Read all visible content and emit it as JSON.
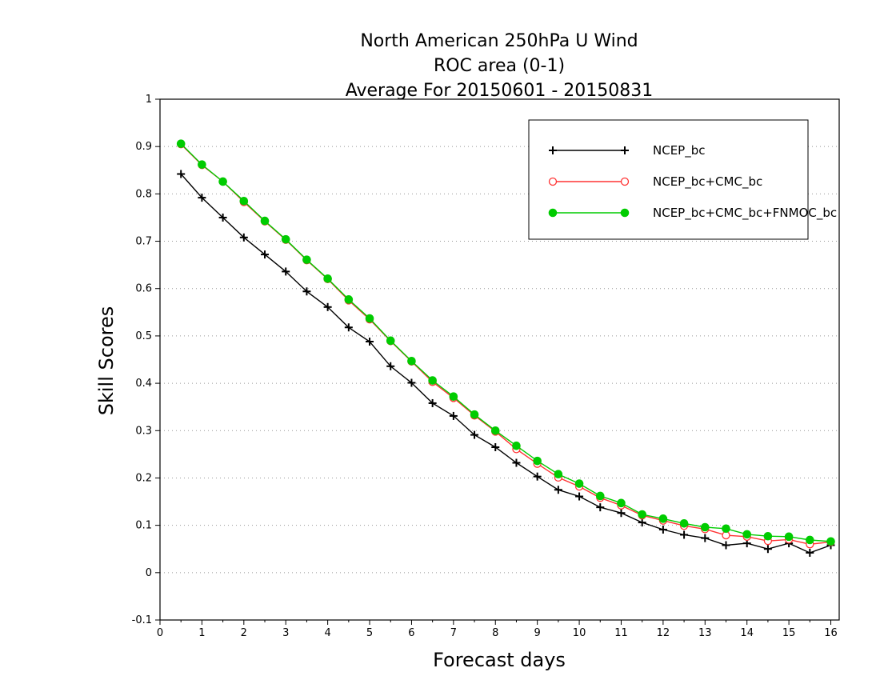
{
  "chart_data": {
    "type": "line",
    "title_lines": [
      "North American 250hPa U Wind",
      "ROC area (0-1)",
      "Average For 20150601 - 20150831"
    ],
    "xlabel": "Forecast days",
    "ylabel": "Skill Scores",
    "xlim": [
      0,
      16.2
    ],
    "ylim": [
      -0.1,
      1
    ],
    "x_ticks": [
      0,
      1,
      2,
      3,
      4,
      5,
      6,
      7,
      8,
      9,
      10,
      11,
      12,
      13,
      14,
      15,
      16
    ],
    "y_ticks": [
      -0.1,
      0,
      0.1,
      0.2,
      0.3,
      0.4,
      0.5,
      0.6,
      0.7,
      0.8,
      0.9,
      1
    ],
    "y_tick_labels": [
      "-0.1",
      "0",
      "0.1",
      "0.2",
      "0.3",
      "0.4",
      "0.5",
      "0.6",
      "0.7",
      "0.8",
      "0.9",
      "1"
    ],
    "grid": "horizontal dotted",
    "legend_position": "top-right",
    "x": [
      0.5,
      1.0,
      1.5,
      2.0,
      2.5,
      3.0,
      3.5,
      4.0,
      4.5,
      5.0,
      5.5,
      6.0,
      6.5,
      7.0,
      7.5,
      8.0,
      8.5,
      9.0,
      9.5,
      10.0,
      10.5,
      11.0,
      11.5,
      12.0,
      12.5,
      13.0,
      13.5,
      14.0,
      14.5,
      15.0,
      15.5,
      16.0
    ],
    "series": [
      {
        "name": "NCEP_bc",
        "color": "#000000",
        "marker": "plus",
        "values": [
          0.842,
          0.792,
          0.75,
          0.708,
          0.672,
          0.636,
          0.594,
          0.561,
          0.518,
          0.488,
          0.436,
          0.401,
          0.358,
          0.331,
          0.291,
          0.265,
          0.232,
          0.203,
          0.175,
          0.161,
          0.138,
          0.126,
          0.106,
          0.091,
          0.08,
          0.073,
          0.058,
          0.062,
          0.05,
          0.062,
          0.042,
          0.058
        ]
      },
      {
        "name": "NCEP_bc+CMC_bc",
        "color": "#ff3333",
        "marker": "open-circle",
        "values": [
          0.905,
          0.861,
          0.826,
          0.783,
          0.742,
          0.703,
          0.66,
          0.62,
          0.575,
          0.535,
          0.489,
          0.446,
          0.403,
          0.369,
          0.332,
          0.298,
          0.261,
          0.23,
          0.201,
          0.182,
          0.158,
          0.142,
          0.121,
          0.11,
          0.099,
          0.092,
          0.079,
          0.076,
          0.067,
          0.07,
          0.06,
          0.065
        ]
      },
      {
        "name": "NCEP_bc+CMC_bc+FNMOC_bc",
        "color": "#00cc00",
        "marker": "filled-circle",
        "values": [
          0.906,
          0.862,
          0.826,
          0.785,
          0.743,
          0.704,
          0.661,
          0.621,
          0.577,
          0.537,
          0.49,
          0.447,
          0.406,
          0.372,
          0.334,
          0.3,
          0.268,
          0.236,
          0.208,
          0.188,
          0.162,
          0.147,
          0.123,
          0.114,
          0.104,
          0.096,
          0.093,
          0.081,
          0.077,
          0.076,
          0.069,
          0.066
        ]
      }
    ]
  }
}
